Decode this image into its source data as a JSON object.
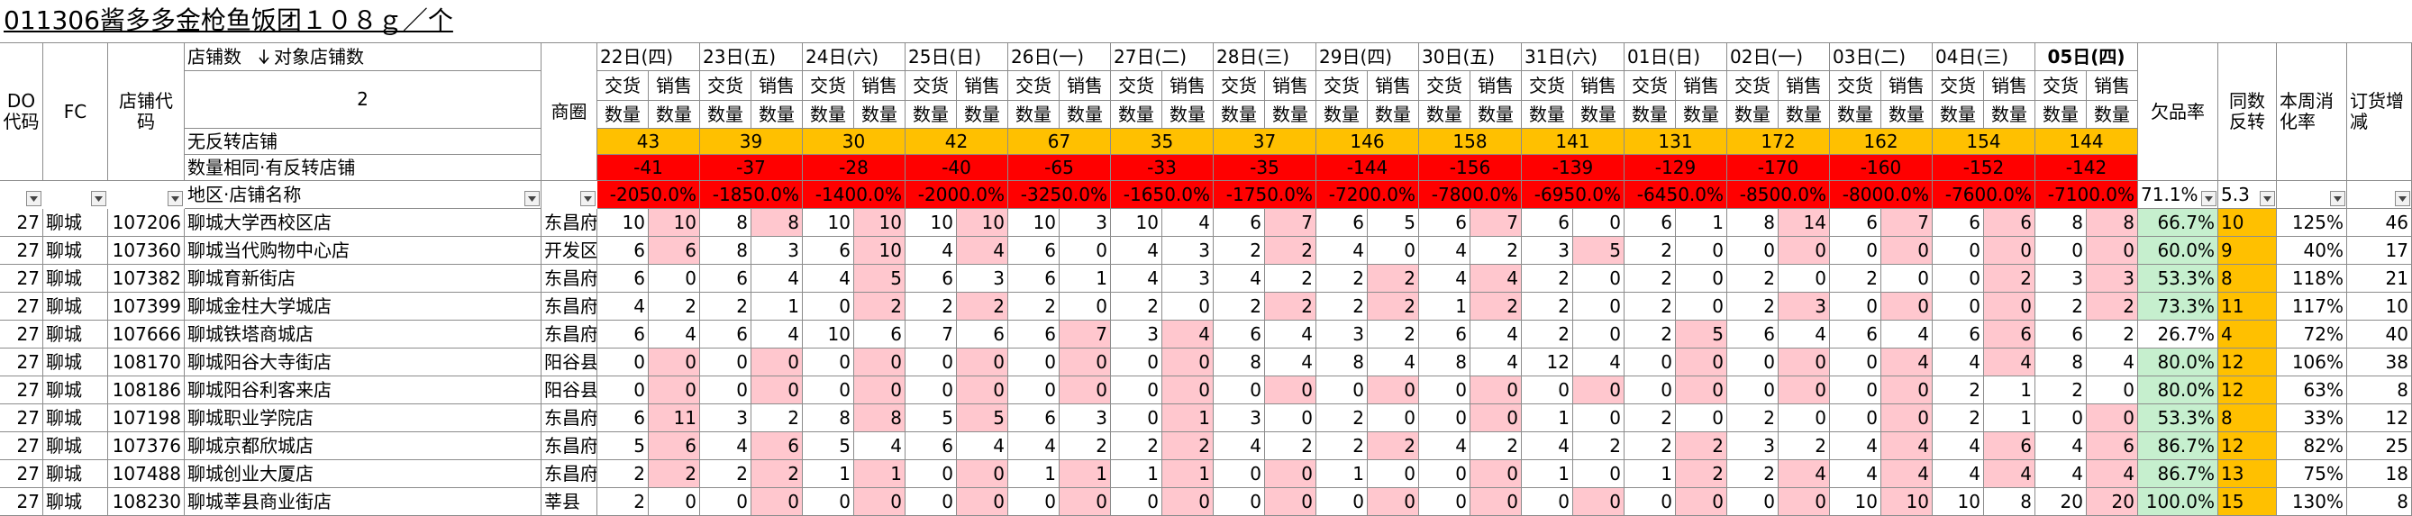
{
  "title": "011306酱多多金枪鱼饭团１０８ｇ／个",
  "header": {
    "do_code": "DO代码",
    "fc": "FC",
    "store_code": "店铺代码",
    "store_count_label": "店铺数",
    "target_store_count_label": "对象店铺数",
    "target_store_count": 2,
    "no_reversal_label": "无反转店铺",
    "same_reversal_label": "数量相同·有反转店铺",
    "region_store_label": "地区·店铺名称",
    "trade_area": "商圈",
    "delivery": "交货",
    "sales": "销售",
    "quantity": "数量",
    "shortage_rate": "欠品率",
    "same_reversal": "同数反转",
    "weekly_digest": "本周消化率",
    "order_change": "订货增减",
    "shortage_rate_total": "71.1%",
    "same_reversal_avg": 5.3
  },
  "days": [
    {
      "date": "22日(四)",
      "no_reversal": 43,
      "same_reversal": -41,
      "ratio": "-2050.0%"
    },
    {
      "date": "23日(五)",
      "no_reversal": 39,
      "same_reversal": -37,
      "ratio": "-1850.0%"
    },
    {
      "date": "24日(六)",
      "no_reversal": 30,
      "same_reversal": -28,
      "ratio": "-1400.0%"
    },
    {
      "date": "25日(日)",
      "no_reversal": 42,
      "same_reversal": -40,
      "ratio": "-2000.0%"
    },
    {
      "date": "26日(一)",
      "no_reversal": 67,
      "same_reversal": -65,
      "ratio": "-3250.0%"
    },
    {
      "date": "27日(二)",
      "no_reversal": 35,
      "same_reversal": -33,
      "ratio": "-1650.0%"
    },
    {
      "date": "28日(三)",
      "no_reversal": 37,
      "same_reversal": -35,
      "ratio": "-1750.0%"
    },
    {
      "date": "29日(四)",
      "no_reversal": 146,
      "same_reversal": -144,
      "ratio": "-7200.0%"
    },
    {
      "date": "30日(五)",
      "no_reversal": 158,
      "same_reversal": -156,
      "ratio": "-7800.0%"
    },
    {
      "date": "31日(六)",
      "no_reversal": 141,
      "same_reversal": -139,
      "ratio": "-6950.0%"
    },
    {
      "date": "01日(日)",
      "no_reversal": 131,
      "same_reversal": -129,
      "ratio": "-6450.0%"
    },
    {
      "date": "02日(一)",
      "no_reversal": 172,
      "same_reversal": -170,
      "ratio": "-8500.0%"
    },
    {
      "date": "03日(二)",
      "no_reversal": 162,
      "same_reversal": -160,
      "ratio": "-8000.0%"
    },
    {
      "date": "04日(三)",
      "no_reversal": 154,
      "same_reversal": -152,
      "ratio": "-7600.0%"
    },
    {
      "date": "05日(四)",
      "no_reversal": 144,
      "same_reversal": -142,
      "ratio": "-7100.0%"
    }
  ],
  "rows": [
    {
      "do": 27,
      "fc": "聊城",
      "code": 107206,
      "name": "聊城大学西校区店",
      "area": "东昌府",
      "delivery": [
        10,
        8,
        10,
        10,
        10,
        10,
        6,
        6,
        6,
        6,
        6,
        8,
        6,
        6,
        8
      ],
      "sales": [
        10,
        8,
        10,
        10,
        3,
        4,
        7,
        5,
        7,
        0,
        1,
        14,
        7,
        6,
        8
      ],
      "shortage_rate": "66.7%",
      "same_reversal": 10,
      "weekly_digest": "125%",
      "order_change": 46
    },
    {
      "do": 27,
      "fc": "聊城",
      "code": 107360,
      "name": "聊城当代购物中心店",
      "area": "开发区",
      "delivery": [
        6,
        8,
        6,
        4,
        6,
        4,
        2,
        4,
        4,
        3,
        2,
        0,
        0,
        0,
        0
      ],
      "sales": [
        6,
        3,
        10,
        4,
        0,
        3,
        2,
        0,
        2,
        5,
        0,
        0,
        0,
        0,
        0
      ],
      "shortage_rate": "60.0%",
      "same_reversal": 9,
      "weekly_digest": "40%",
      "order_change": 17
    },
    {
      "do": 27,
      "fc": "聊城",
      "code": 107382,
      "name": "聊城育新街店",
      "area": "东昌府",
      "delivery": [
        6,
        6,
        4,
        6,
        6,
        4,
        4,
        2,
        4,
        2,
        2,
        2,
        2,
        0,
        3
      ],
      "sales": [
        0,
        4,
        5,
        3,
        1,
        3,
        2,
        2,
        4,
        0,
        0,
        0,
        0,
        2,
        3
      ],
      "shortage_rate": "53.3%",
      "same_reversal": 8,
      "weekly_digest": "118%",
      "order_change": 21
    },
    {
      "do": 27,
      "fc": "聊城",
      "code": 107399,
      "name": "聊城金柱大学城店",
      "area": "东昌府",
      "delivery": [
        4,
        2,
        0,
        2,
        2,
        2,
        2,
        2,
        1,
        2,
        2,
        2,
        0,
        0,
        2
      ],
      "sales": [
        2,
        1,
        2,
        2,
        0,
        0,
        2,
        2,
        2,
        0,
        0,
        3,
        0,
        0,
        2
      ],
      "shortage_rate": "73.3%",
      "same_reversal": 11,
      "weekly_digest": "117%",
      "order_change": 10
    },
    {
      "do": 27,
      "fc": "聊城",
      "code": 107666,
      "name": "聊城铁塔商城店",
      "area": "东昌府",
      "delivery": [
        6,
        6,
        10,
        7,
        6,
        3,
        6,
        3,
        6,
        2,
        2,
        6,
        6,
        6,
        6
      ],
      "sales": [
        4,
        4,
        6,
        6,
        7,
        4,
        4,
        2,
        4,
        0,
        5,
        4,
        4,
        6,
        2
      ],
      "shortage_rate": "26.7%",
      "same_reversal": 4,
      "weekly_digest": "72%",
      "order_change": 40
    },
    {
      "do": 27,
      "fc": "聊城",
      "code": 108170,
      "name": "聊城阳谷大寺街店",
      "area": "阳谷县",
      "delivery": [
        0,
        0,
        0,
        0,
        0,
        0,
        8,
        8,
        8,
        12,
        0,
        0,
        0,
        4,
        8
      ],
      "sales": [
        0,
        0,
        0,
        0,
        0,
        0,
        4,
        4,
        4,
        4,
        0,
        0,
        4,
        4,
        4
      ],
      "shortage_rate": "80.0%",
      "same_reversal": 12,
      "weekly_digest": "106%",
      "order_change": 38
    },
    {
      "do": 27,
      "fc": "聊城",
      "code": 108186,
      "name": "聊城阳谷利客来店",
      "area": "阳谷县",
      "delivery": [
        0,
        0,
        0,
        0,
        0,
        0,
        0,
        0,
        0,
        0,
        0,
        0,
        0,
        2,
        2
      ],
      "sales": [
        0,
        0,
        0,
        0,
        0,
        0,
        0,
        0,
        0,
        0,
        0,
        0,
        0,
        1,
        0
      ],
      "shortage_rate": "80.0%",
      "same_reversal": 12,
      "weekly_digest": "63%",
      "order_change": 8
    },
    {
      "do": 27,
      "fc": "聊城",
      "code": 107198,
      "name": "聊城职业学院店",
      "area": "东昌府",
      "delivery": [
        6,
        3,
        8,
        5,
        6,
        0,
        3,
        2,
        0,
        1,
        2,
        2,
        0,
        2,
        0
      ],
      "sales": [
        11,
        2,
        8,
        5,
        3,
        1,
        0,
        0,
        0,
        0,
        0,
        0,
        0,
        1,
        0
      ],
      "shortage_rate": "53.3%",
      "same_reversal": 8,
      "weekly_digest": "33%",
      "order_change": 12
    },
    {
      "do": 27,
      "fc": "聊城",
      "code": 107376,
      "name": "聊城京都欣城店",
      "area": "东昌府",
      "delivery": [
        5,
        4,
        5,
        6,
        4,
        2,
        4,
        2,
        4,
        4,
        2,
        3,
        4,
        4,
        4
      ],
      "sales": [
        6,
        6,
        4,
        4,
        2,
        2,
        2,
        2,
        2,
        2,
        2,
        2,
        4,
        6,
        6
      ],
      "shortage_rate": "86.7%",
      "same_reversal": 12,
      "weekly_digest": "82%",
      "order_change": 25
    },
    {
      "do": 27,
      "fc": "聊城",
      "code": 107488,
      "name": "聊城创业大厦店",
      "area": "东昌府",
      "delivery": [
        2,
        2,
        1,
        0,
        1,
        1,
        0,
        1,
        0,
        1,
        1,
        2,
        4,
        4,
        4
      ],
      "sales": [
        2,
        2,
        1,
        0,
        1,
        1,
        0,
        0,
        0,
        0,
        2,
        4,
        4,
        4,
        4
      ],
      "shortage_rate": "86.7%",
      "same_reversal": 13,
      "weekly_digest": "75%",
      "order_change": 18
    },
    {
      "do": 27,
      "fc": "聊城",
      "code": 108230,
      "name": "聊城莘县商业街店",
      "area": "莘县",
      "delivery": [
        2,
        0,
        0,
        0,
        0,
        0,
        0,
        0,
        0,
        0,
        0,
        0,
        10,
        10,
        20
      ],
      "sales": [
        0,
        0,
        0,
        0,
        0,
        0,
        0,
        0,
        0,
        0,
        0,
        0,
        10,
        8,
        20
      ],
      "shortage_rate": "100.0%",
      "same_reversal": 15,
      "weekly_digest": "130%",
      "order_change": 8
    }
  ]
}
